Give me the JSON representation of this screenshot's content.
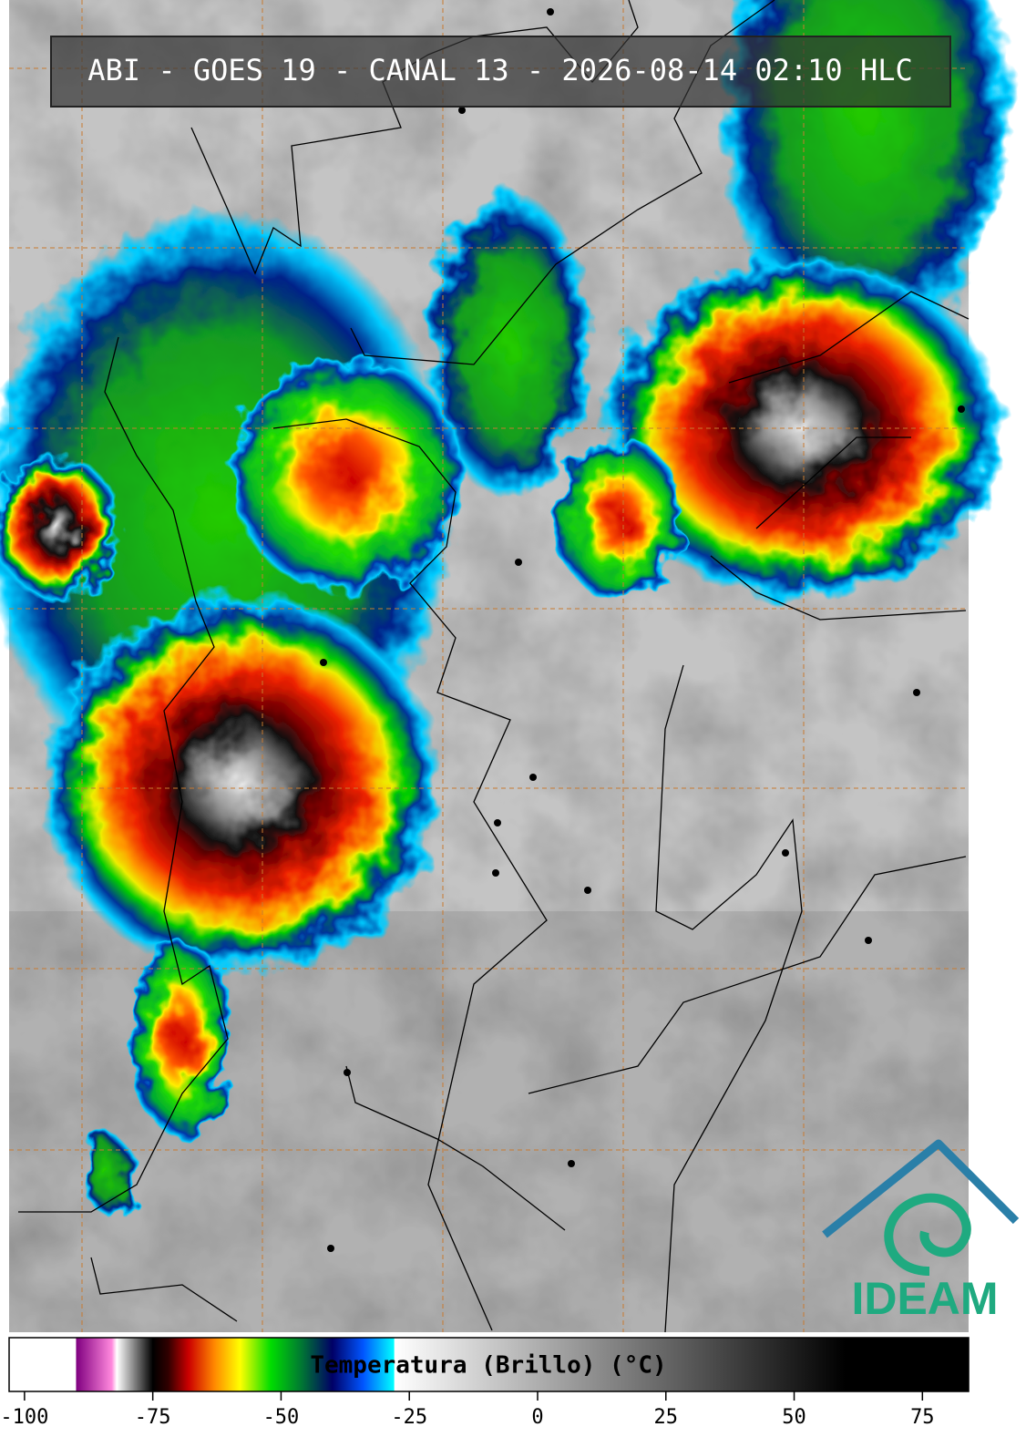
{
  "header": {
    "title": "ABI - GOES 19 - CANAL 13 - 2026-08-14 02:10 HLC"
  },
  "logo": {
    "text": "IDEAM"
  },
  "colorbar": {
    "label": "Temperatura (Brillo) (°C)",
    "lim": [
      -103,
      84
    ],
    "ticks": [
      -100,
      -75,
      -50,
      -25,
      0,
      25,
      50,
      75
    ],
    "stops": [
      {
        "value": -103,
        "color": "#ffffff"
      },
      {
        "value": -90,
        "color": "#ffffff"
      },
      {
        "value": -89.9,
        "color": "#800080"
      },
      {
        "value": -83,
        "color": "#ff88dd"
      },
      {
        "value": -82,
        "color": "#ffffff"
      },
      {
        "value": -75,
        "color": "#000000"
      },
      {
        "value": -72,
        "color": "#300000"
      },
      {
        "value": -68,
        "color": "#cc0000"
      },
      {
        "value": -63,
        "color": "#ff8800"
      },
      {
        "value": -58,
        "color": "#ffff00"
      },
      {
        "value": -52,
        "color": "#00dd00"
      },
      {
        "value": -46,
        "color": "#007733"
      },
      {
        "value": -40,
        "color": "#000066"
      },
      {
        "value": -34,
        "color": "#0055ff"
      },
      {
        "value": -28,
        "color": "#00ffff"
      },
      {
        "value": -27.9,
        "color": "#ffffff"
      },
      {
        "value": 60,
        "color": "#000000"
      },
      {
        "value": 84,
        "color": "#000000"
      }
    ]
  }
}
